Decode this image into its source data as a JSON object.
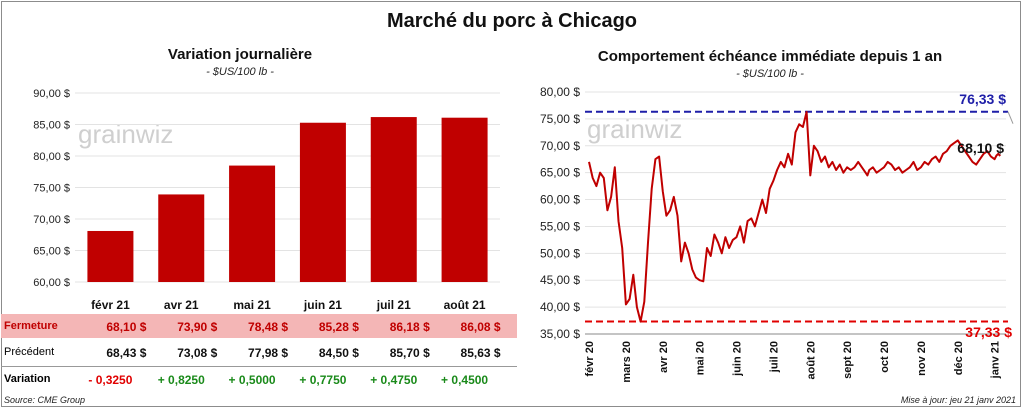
{
  "title": "Marché du porc à Chicago",
  "left_panel": {
    "title": "Variation  journalière",
    "subtitle": "- $US/100 lb -",
    "watermark": "grainwiz"
  },
  "right_panel": {
    "title": "Comportement  échéance immédiate depuis 1 an",
    "subtitle": "- $US/100 lb -",
    "watermark": "grainwiz",
    "max_label": "76,33 $",
    "min_label": "37,33 $",
    "last_label": "68,10 $"
  },
  "table": {
    "row_labels": {
      "close": "Fermeture",
      "previous": "Précédent",
      "change": "Variation"
    },
    "close": [
      "68,10  $",
      "73,90  $",
      "78,48  $",
      "85,28  $",
      "86,18  $",
      "86,08  $"
    ],
    "previous": [
      "68,43  $",
      "73,08  $",
      "77,98  $",
      "84,50  $",
      "85,70  $",
      "85,63  $"
    ],
    "change": [
      "- 0,3250",
      "+ 0,8250",
      "+ 0,5000",
      "+ 0,7750",
      "+ 0,4750",
      "+ 0,4500"
    ]
  },
  "footer": {
    "source": "Source: CME Group",
    "updated": "Mise à jour: jeu 21 janv 2021"
  },
  "colors": {
    "bar": "#c00000",
    "line": "#c00000",
    "max_line": "#1f1fa8",
    "min_line": "#e00000",
    "positive": "#1a8a1a",
    "negative": "#e00000",
    "close_row_bg": "#f4b6b6"
  },
  "chart_data": [
    {
      "type": "bar",
      "categories": [
        "févr 21",
        "avr 21",
        "mai 21",
        "juin 21",
        "juil 21",
        "août 21"
      ],
      "values": [
        68.1,
        73.9,
        78.48,
        85.28,
        86.18,
        86.08
      ],
      "ylim": [
        60,
        90
      ],
      "yticks": [
        "60,00 $",
        "65,00 $",
        "70,00 $",
        "75,00 $",
        "80,00 $",
        "85,00 $",
        "90,00 $"
      ],
      "ytick_values": [
        60,
        65,
        70,
        75,
        80,
        85,
        90
      ]
    },
    {
      "type": "line",
      "ylim": [
        35,
        80
      ],
      "yticks": [
        "35,00 $",
        "40,00 $",
        "45,00 $",
        "50,00 $",
        "55,00 $",
        "60,00 $",
        "65,00 $",
        "70,00 $",
        "75,00 $",
        "80,00 $"
      ],
      "ytick_values": [
        35,
        40,
        45,
        50,
        55,
        60,
        65,
        70,
        75,
        80
      ],
      "xticks": [
        "févr 20",
        "mars 20",
        "avr 20",
        "mai 20",
        "juin 20",
        "juil 20",
        "août 20",
        "sept 20",
        "oct 20",
        "nov 20",
        "déc 20",
        "janv 21"
      ],
      "xtick_positions": [
        0,
        1,
        2,
        3,
        4,
        5,
        6,
        7,
        8,
        9,
        10,
        11
      ],
      "x": [
        0,
        0.1,
        0.2,
        0.3,
        0.4,
        0.5,
        0.6,
        0.7,
        0.8,
        0.9,
        1.0,
        1.1,
        1.2,
        1.3,
        1.4,
        1.5,
        1.6,
        1.7,
        1.8,
        1.9,
        2.0,
        2.1,
        2.2,
        2.3,
        2.4,
        2.5,
        2.6,
        2.7,
        2.8,
        2.9,
        3.0,
        3.1,
        3.2,
        3.3,
        3.4,
        3.5,
        3.6,
        3.7,
        3.8,
        3.9,
        4.0,
        4.1,
        4.2,
        4.3,
        4.4,
        4.5,
        4.6,
        4.7,
        4.8,
        4.9,
        5.0,
        5.1,
        5.2,
        5.3,
        5.4,
        5.5,
        5.6,
        5.7,
        5.8,
        5.9,
        6.0,
        6.1,
        6.2,
        6.3,
        6.4,
        6.5,
        6.6,
        6.7,
        6.8,
        6.9,
        7.0,
        7.1,
        7.2,
        7.3,
        7.4,
        7.5,
        7.55,
        7.6,
        7.7,
        7.8,
        7.9,
        8.0,
        8.1,
        8.2,
        8.3,
        8.4,
        8.5,
        8.6,
        8.7,
        8.8,
        8.9,
        9.0,
        9.1,
        9.2,
        9.3,
        9.4,
        9.5,
        9.6,
        9.7,
        9.8,
        9.9,
        10.0,
        10.1,
        10.2,
        10.3,
        10.4,
        10.5,
        10.6,
        10.7,
        10.8,
        10.9,
        11.0,
        11.05,
        11.1,
        11.15
      ],
      "y": [
        67.0,
        64.0,
        62.5,
        65.0,
        64.0,
        58.0,
        60.5,
        66.0,
        56.0,
        51.0,
        40.5,
        41.5,
        46.0,
        40.0,
        37.3,
        41.0,
        52.0,
        62.0,
        67.5,
        68.0,
        61.5,
        57.0,
        58.0,
        60.5,
        57.0,
        48.5,
        52.0,
        50.0,
        47.0,
        45.5,
        45.0,
        44.8,
        51.0,
        49.5,
        53.5,
        52.0,
        50.0,
        53.0,
        51.0,
        52.5,
        53.0,
        55.0,
        52.0,
        56.0,
        56.5,
        55.0,
        57.5,
        60.0,
        57.5,
        62.0,
        63.5,
        65.5,
        67.0,
        66.0,
        68.5,
        66.5,
        72.5,
        74.0,
        73.5,
        76.3,
        64.5,
        70.0,
        69.0,
        67.0,
        68.0,
        66.0,
        67.0,
        65.5,
        66.5,
        65.0,
        66.0,
        65.5,
        66.0,
        67.0,
        66.0,
        65.0,
        64.5,
        65.5,
        66.0,
        65.0,
        65.5,
        66.0,
        67.0,
        66.5,
        65.5,
        66.0,
        65.0,
        65.5,
        66.0,
        67.0,
        65.5,
        66.0,
        67.0,
        66.5,
        67.5,
        68.0,
        67.0,
        68.5,
        69.0,
        70.0,
        70.5,
        71.0,
        70.0,
        69.0,
        68.0,
        67.0,
        66.5,
        67.5,
        68.5,
        69.0,
        68.0,
        67.5,
        68.2,
        68.5,
        68.1
      ],
      "max_value": 76.33,
      "min_value": 37.33,
      "last_value": 68.1
    }
  ]
}
